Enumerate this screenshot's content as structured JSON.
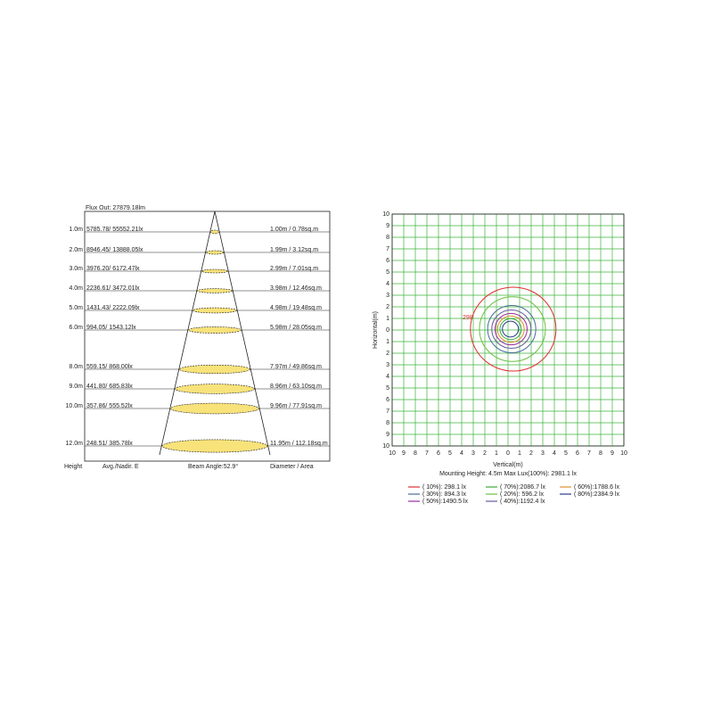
{
  "beam": {
    "flux_out": "Flux Out: 27879.18lm",
    "rows": [
      {
        "height": "1.0m",
        "lux": "5785.78/ 55552.21lx",
        "diameter": "1.00m / 0.78sq.m"
      },
      {
        "height": "2.0m",
        "lux": "8946.45/ 13888.05lx",
        "diameter": "1.99m / 3.12sq.m"
      },
      {
        "height": "3.0m",
        "lux": "3976.20/ 6172.47lx",
        "diameter": "2.99m / 7.01sq.m"
      },
      {
        "height": "4.0m",
        "lux": "2236.61/ 3472.01lx",
        "diameter": "3.98m / 12.46sq.m"
      },
      {
        "height": "5.0m",
        "lux": "1431.43/ 2222.09lx",
        "diameter": "4.98m / 19.48sq.m"
      },
      {
        "height": "6.0m",
        "lux": "994.05/ 1543.12lx",
        "diameter": "5.98m / 28.05sq.m"
      },
      {
        "height": "8.0m",
        "lux": "559.15/ 868.00lx",
        "diameter": "7.97m / 49.86sq.m"
      },
      {
        "height": "9.0m",
        "lux": "441.80/ 685.83lx",
        "diameter": "8.96m / 63.10sq.m"
      },
      {
        "height": "10.0m",
        "lux": "357.86/ 555.52lx",
        "diameter": "9.96m / 77.91sq.m"
      },
      {
        "height": "12.0m",
        "lux": "248.51/ 385.78lx",
        "diameter": "11.95m / 112.18sq.m"
      }
    ],
    "footer": {
      "height": "Height",
      "lux": "Avg./Nadir. E",
      "beam": "Beam Angle:52.9°",
      "diameter": "Diameter / Area"
    }
  },
  "isolux": {
    "ticks": [
      "10",
      "9",
      "8",
      "7",
      "6",
      "5",
      "4",
      "3",
      "2",
      "1",
      "0",
      "1",
      "2",
      "3",
      "4",
      "5",
      "6",
      "7",
      "8",
      "9",
      "10"
    ],
    "y_label": "Horizontal(m)",
    "x_label": "Vertical(m)",
    "info": "Mounting Height: 4.5m   Max Lux(100%): 2981.1 lx",
    "contour_label": "298",
    "legend": [
      {
        "label": "( 10%): 298.1 lx",
        "color": "#e03030"
      },
      {
        "label": "( 30%): 894.3 lx",
        "color": "#4a6a9a"
      },
      {
        "label": "( 50%):1490.5 lx",
        "color": "#9a2aa0"
      },
      {
        "label": "( 70%):2086.7 lx",
        "color": "#3aaa3a"
      },
      {
        "label": "( 20%): 596.2 lx",
        "color": "#6ac040"
      },
      {
        "label": "( 40%):1192.4 lx",
        "color": "#6a5a9a"
      },
      {
        "label": "( 60%):1788.6 lx",
        "color": "#e09030"
      },
      {
        "label": "( 80%):2384.9 lx",
        "color": "#2a3a8a"
      }
    ]
  }
}
